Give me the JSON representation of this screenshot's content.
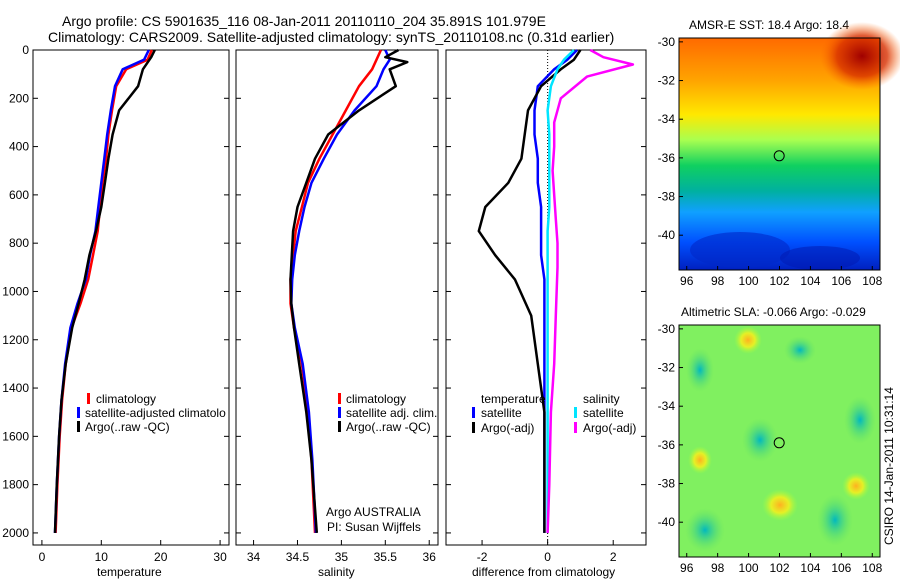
{
  "header": {
    "line1": "Argo profile: CS 5901635_116 08-Jan-2011 20110110_204 35.891S 101.979E",
    "line2": "Climatology: CARS2009. Satellite-adjusted climatology: synTS_20110108.nc (0.31d earlier)"
  },
  "chart_data": [
    {
      "type": "line",
      "id": "temperature",
      "xlabel": "temperature",
      "xlim": [
        -1.5,
        31.5
      ],
      "xticks": [
        "0",
        "10",
        "20",
        "30"
      ],
      "xtick_values": [
        0,
        10,
        20,
        30
      ],
      "ylim": [
        0,
        2050
      ],
      "yticks": [
        "0",
        "200",
        "400",
        "600",
        "800",
        "1000",
        "1200",
        "1400",
        "1600",
        "1800",
        "2000"
      ],
      "ytick_values": [
        0,
        200,
        400,
        600,
        800,
        1000,
        1200,
        1400,
        1600,
        1800,
        2000
      ],
      "y_inverted": true,
      "legend": [
        "climatology",
        "satellite-adjusted climatolo",
        "Argo(..raw -QC)"
      ],
      "series": [
        {
          "name": "climatology",
          "color": "#ff0000",
          "x": [
            18.5,
            17.8,
            14.2,
            12.5,
            11.8,
            11.2,
            10.8,
            10.2,
            9.8,
            9.4,
            8.6,
            7.8,
            6.5,
            5.0,
            4.0,
            3.4,
            3.0,
            2.6,
            2.3
          ],
          "y": [
            0,
            40,
            80,
            150,
            250,
            350,
            450,
            550,
            650,
            750,
            850,
            950,
            1050,
            1150,
            1300,
            1450,
            1600,
            1800,
            2000
          ]
        },
        {
          "name": "satellite-adjusted climatology",
          "color": "#0000ff",
          "x": [
            18.0,
            17.2,
            13.6,
            12.3,
            11.6,
            11.0,
            10.5,
            10.0,
            9.5,
            9.0,
            8.1,
            7.4,
            6.0,
            4.8,
            3.9,
            3.3,
            2.9,
            2.5,
            2.2
          ],
          "y": [
            0,
            40,
            80,
            150,
            250,
            350,
            450,
            550,
            650,
            750,
            850,
            950,
            1050,
            1150,
            1300,
            1450,
            1600,
            1800,
            2000
          ]
        },
        {
          "name": "Argo(..raw -QC)",
          "color": "#000000",
          "x": [
            19.0,
            18.4,
            17.0,
            16.2,
            13.0,
            11.9,
            11.2,
            10.6,
            10.0,
            9.1,
            8.0,
            7.2,
            6.2,
            5.1,
            4.0,
            3.3,
            2.9,
            2.5,
            2.2
          ],
          "y": [
            0,
            30,
            80,
            150,
            250,
            350,
            450,
            550,
            650,
            750,
            850,
            950,
            1050,
            1150,
            1300,
            1450,
            1600,
            1800,
            2000
          ]
        }
      ]
    },
    {
      "type": "line",
      "id": "salinity",
      "xlabel": "salinity",
      "xlim": [
        33.8,
        36.1
      ],
      "xticks": [
        "34",
        "34.5",
        "35",
        "35.5",
        "36"
      ],
      "xtick_values": [
        34,
        34.5,
        35,
        35.5,
        36
      ],
      "ylim": [
        0,
        2050
      ],
      "y_inverted": true,
      "legend": [
        "climatology",
        "satellite adj. clim.",
        "Argo(..raw -QC)"
      ],
      "annotations": [
        "Argo AUSTRALIA",
        "PI: Susan Wijffels"
      ],
      "series": [
        {
          "name": "climatology",
          "color": "#ff0000",
          "x": [
            35.45,
            35.4,
            35.35,
            35.2,
            35.05,
            34.9,
            34.75,
            34.62,
            34.55,
            34.48,
            34.45,
            34.42,
            34.42,
            34.46,
            34.55,
            34.62,
            34.66,
            34.7
          ],
          "y": [
            0,
            40,
            80,
            150,
            250,
            350,
            450,
            550,
            650,
            750,
            850,
            950,
            1050,
            1150,
            1300,
            1500,
            1700,
            2000
          ]
        },
        {
          "name": "satellite adj. clim.",
          "color": "#0000ff",
          "x": [
            35.5,
            35.55,
            35.48,
            35.4,
            35.15,
            34.95,
            34.8,
            34.66,
            34.58,
            34.52,
            34.47,
            34.44,
            34.43,
            34.47,
            34.56,
            34.63,
            34.67,
            34.71
          ],
          "y": [
            0,
            40,
            80,
            150,
            250,
            350,
            450,
            550,
            650,
            750,
            850,
            950,
            1050,
            1150,
            1300,
            1500,
            1700,
            2000
          ]
        },
        {
          "name": "Argo(..raw -QC)",
          "color": "#000000",
          "x": [
            35.65,
            35.5,
            35.75,
            35.55,
            35.62,
            35.2,
            34.85,
            34.7,
            34.6,
            34.5,
            34.45,
            34.42,
            34.43,
            34.46,
            34.52,
            34.6,
            34.66,
            34.72
          ],
          "y": [
            0,
            30,
            50,
            80,
            150,
            250,
            350,
            450,
            550,
            650,
            750,
            950,
            1050,
            1150,
            1300,
            1500,
            1700,
            2000
          ]
        }
      ]
    },
    {
      "type": "line",
      "id": "difference",
      "xlabel": "difference from climatology",
      "xlim": [
        -3.1,
        3.0
      ],
      "xticks": [
        "-2",
        "0",
        "2"
      ],
      "xtick_values": [
        -2,
        0,
        2
      ],
      "ylim": [
        0,
        2050
      ],
      "y_inverted": true,
      "zero_line": true,
      "legend_left_title": "temperature",
      "legend_right_title": "salinity",
      "legend": [
        "satellite",
        "Argo(-adj)",
        "satellite",
        "Argo(-adj)"
      ],
      "series": [
        {
          "name": "temperature satellite",
          "color": "#0000ff",
          "x": [
            0.9,
            0.6,
            0.2,
            -0.3,
            -0.4,
            -0.4,
            -0.3,
            -0.3,
            -0.2,
            -0.2,
            -0.2,
            -0.1,
            -0.1,
            -0.1,
            -0.1,
            -0.1,
            -0.1
          ],
          "y": [
            0,
            40,
            80,
            150,
            250,
            350,
            450,
            550,
            650,
            750,
            850,
            950,
            1100,
            1300,
            1500,
            1800,
            2000
          ]
        },
        {
          "name": "temperature Argo(-adj)",
          "color": "#000000",
          "x": [
            1.0,
            0.8,
            0.4,
            -0.2,
            -0.6,
            -0.7,
            -0.8,
            -1.2,
            -1.9,
            -2.1,
            -1.6,
            -1.0,
            -0.5,
            -0.3,
            -0.1,
            -0.1,
            -0.1
          ],
          "y": [
            0,
            40,
            80,
            150,
            250,
            350,
            450,
            550,
            650,
            750,
            850,
            950,
            1100,
            1300,
            1500,
            1800,
            2000
          ]
        },
        {
          "name": "salinity satellite",
          "color": "#00e5ff",
          "x": [
            0.8,
            0.5,
            0.3,
            0.1,
            0.0,
            0.05,
            0.05,
            0.05,
            0.05,
            0.0,
            0.0,
            0.0,
            0.0,
            0.0,
            0.0,
            0.0,
            0.0
          ],
          "y": [
            0,
            40,
            80,
            150,
            250,
            350,
            450,
            550,
            650,
            750,
            850,
            950,
            1100,
            1300,
            1500,
            1800,
            2000
          ]
        },
        {
          "name": "salinity Argo(-adj)",
          "color": "#ff00ff",
          "x": [
            1.3,
            1.7,
            2.6,
            1.2,
            0.4,
            0.2,
            0.2,
            0.15,
            0.2,
            0.25,
            0.3,
            0.3,
            0.25,
            0.2,
            0.1,
            0.05,
            0.0
          ],
          "y": [
            0,
            30,
            60,
            110,
            200,
            300,
            400,
            500,
            600,
            700,
            800,
            900,
            1100,
            1300,
            1500,
            1800,
            2000
          ]
        }
      ]
    },
    {
      "type": "heatmap",
      "id": "sst",
      "title": "AMSR-E SST: 18.4 Argo: 18.4",
      "xlim": [
        95.5,
        108.5
      ],
      "ylim": [
        -41.8,
        -29.8
      ],
      "xticks": [
        "96",
        "98",
        "100",
        "102",
        "104",
        "106",
        "108"
      ],
      "xtick_values": [
        96,
        98,
        100,
        102,
        104,
        106,
        108
      ],
      "yticks": [
        "-30",
        "-32",
        "-34",
        "-36",
        "-38",
        "-40"
      ],
      "ytick_values": [
        -30,
        -32,
        -34,
        -36,
        -38,
        -40
      ],
      "marker": {
        "lon": 101.979,
        "lat": -35.891
      }
    },
    {
      "type": "heatmap",
      "id": "sla",
      "title": "Altimetric SLA: -0.066 Argo: -0.029",
      "xlim": [
        95.5,
        108.5
      ],
      "ylim": [
        -41.8,
        -29.8
      ],
      "xticks": [
        "96",
        "98",
        "100",
        "102",
        "104",
        "106",
        "108"
      ],
      "xtick_values": [
        96,
        98,
        100,
        102,
        104,
        106,
        108
      ],
      "yticks": [
        "-30",
        "-32",
        "-34",
        "-36",
        "-38",
        "-40"
      ],
      "ytick_values": [
        -30,
        -32,
        -34,
        -36,
        -38,
        -40
      ],
      "marker": {
        "lon": 101.979,
        "lat": -35.891
      }
    }
  ],
  "footer": {
    "credit": "CSIRO 14-Jan-2011 10:31:14"
  }
}
